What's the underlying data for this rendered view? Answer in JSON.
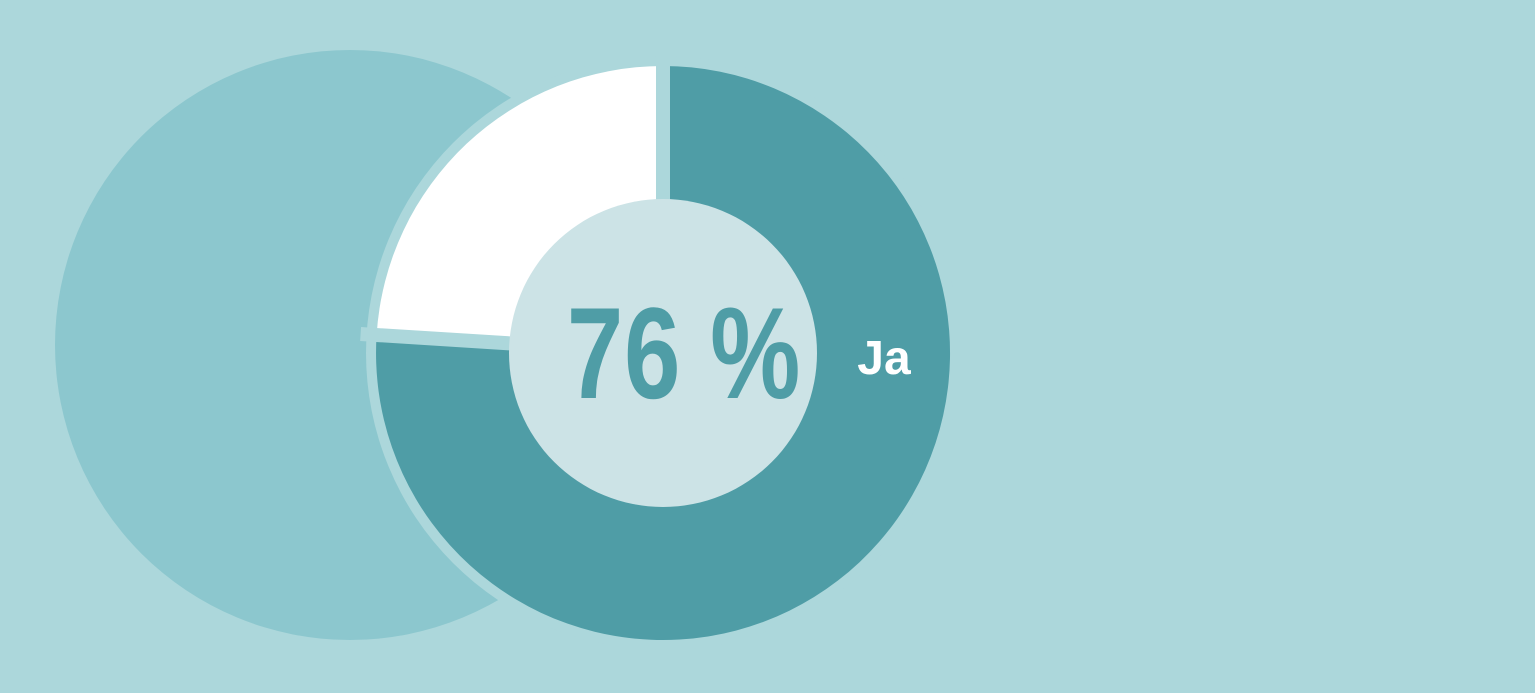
{
  "page": {
    "background_color": "#acd7db"
  },
  "decorative": {
    "big_circle_color": "#8cc7ce"
  },
  "chart": {
    "center_label": "76 %",
    "center_value_color": "#4f9da6",
    "center_circle_color": "#cce3e6",
    "halo_color": "#acd7db",
    "segment_label_color": "#ffffff"
  },
  "chart_data": {
    "type": "pie",
    "subtype": "donut",
    "title": "",
    "center_text": "76 %",
    "start_angle_deg": -90,
    "direction": "clockwise",
    "segments": [
      {
        "label": "Ja",
        "value": 76,
        "color": "#4f9da6"
      },
      {
        "label": "",
        "value": 24,
        "color": "#ffffff"
      }
    ],
    "legend_position": "on-segment-right"
  }
}
